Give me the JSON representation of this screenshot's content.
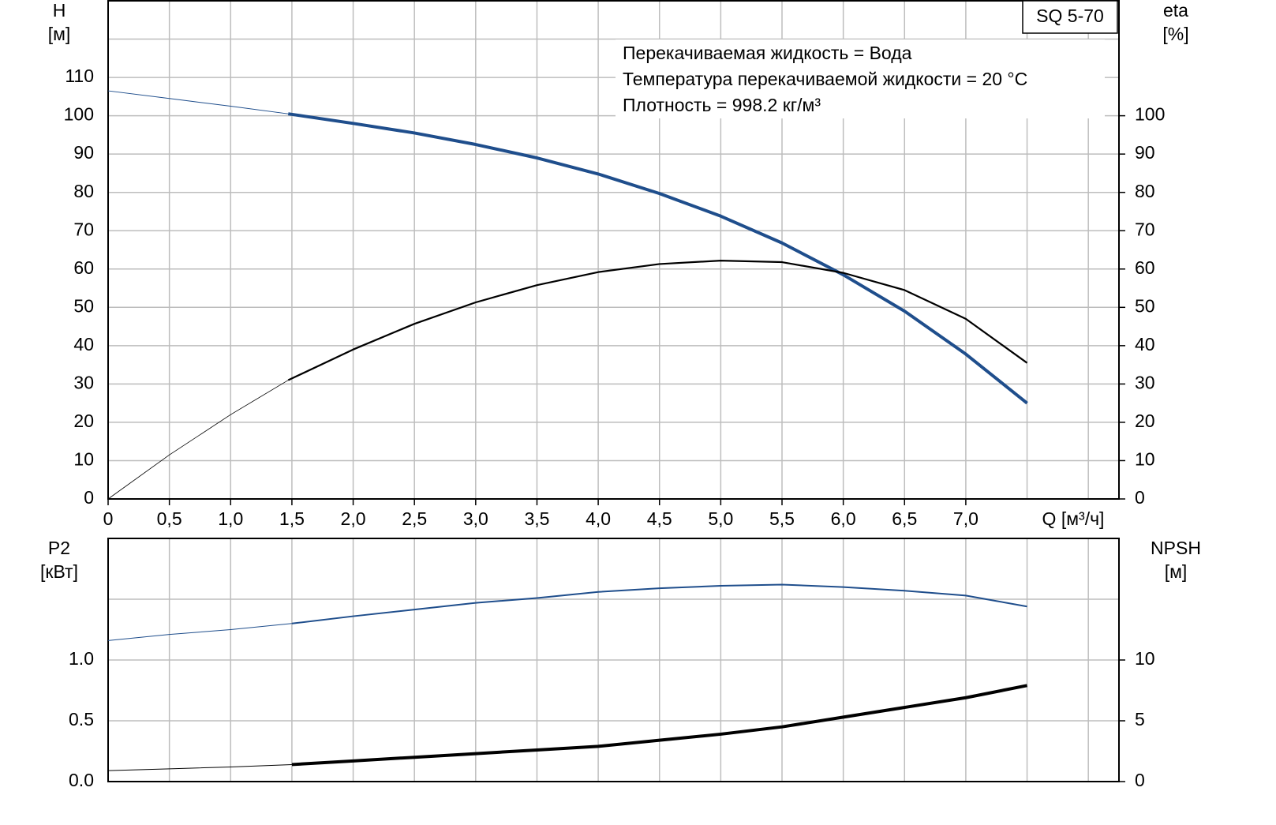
{
  "chart_data": [
    {
      "type": "line",
      "ylabel": "H",
      "ylabel_unit": "[м]",
      "y2label": "eta",
      "y2label_unit": "[%]",
      "xlabel": "Q [м³/ч]",
      "model": "SQ 5-70",
      "annotations": [
        "Перекачиваемая жидкость = Вода",
        "Температура перекачиваемой жидкости = 20 °C",
        "Плотность = 998.2 кг/м³"
      ],
      "xlim": [
        0,
        8.25
      ],
      "xticks": [
        0,
        {
          "value": 0.5,
          "label": "0,5"
        },
        {
          "value": 1.0,
          "label": "1,0"
        },
        {
          "value": 1.5,
          "label": "1,5"
        },
        {
          "value": 2.0,
          "label": "2,0"
        },
        {
          "value": 2.5,
          "label": "2,5"
        },
        {
          "value": 3.0,
          "label": "3,0"
        },
        {
          "value": 3.5,
          "label": "3,5"
        },
        {
          "value": 4.0,
          "label": "4,0"
        },
        {
          "value": 4.5,
          "label": "4,5"
        },
        {
          "value": 5.0,
          "label": "5,0"
        },
        {
          "value": 5.5,
          "label": "5,5"
        },
        {
          "value": 6.0,
          "label": "6,0"
        },
        {
          "value": 6.5,
          "label": "6,5"
        },
        {
          "value": 7.0,
          "label": "7,0"
        }
      ],
      "ylim": [
        0,
        130
      ],
      "yticks": [
        0,
        10,
        20,
        30,
        40,
        50,
        60,
        70,
        80,
        90,
        100,
        110
      ],
      "y2lim": [
        0,
        130
      ],
      "y2ticks": [
        0,
        10,
        20,
        30,
        40,
        50,
        60,
        70,
        80,
        90,
        100
      ],
      "grid": true,
      "series": [
        {
          "color": "#1f4e8c",
          "width": 1,
          "x": [
            0,
            0.5,
            1.0,
            1.47
          ],
          "values": [
            106.5,
            104.5,
            102.5,
            100.5
          ]
        },
        {
          "color": "#1f4e8c",
          "width": 4,
          "x": [
            1.47,
            2.0,
            2.5,
            3.0,
            3.5,
            4.0,
            4.5,
            5.0,
            5.5,
            6.0,
            6.5,
            7.0,
            7.5
          ],
          "values": [
            100.5,
            98,
            95.5,
            92.5,
            89,
            84.8,
            79.7,
            73.8,
            66.8,
            58.5,
            49,
            37.8,
            25
          ]
        },
        {
          "color": "#000000",
          "width": 0.8,
          "axis": "y2",
          "x": [
            0,
            0.5,
            1.0,
            1.47
          ],
          "values": [
            0,
            11.5,
            22,
            31
          ]
        },
        {
          "color": "#000000",
          "width": 2.2,
          "axis": "y2",
          "x": [
            1.47,
            2.0,
            2.5,
            3.0,
            3.5,
            4.0,
            4.5,
            5.0,
            5.5,
            6.0,
            6.5,
            7.0,
            7.5
          ],
          "values": [
            31,
            39,
            45.7,
            51.3,
            55.8,
            59.2,
            61.3,
            62.2,
            61.8,
            59,
            54.5,
            47,
            35.5
          ]
        }
      ]
    },
    {
      "type": "line",
      "ylabel": "P2",
      "ylabel_unit": "[кВт]",
      "y2label": "NPSH",
      "y2label_unit": "[м]",
      "xlim": [
        0,
        8.25
      ],
      "ylim": [
        0,
        2.0
      ],
      "yticks": [
        {
          "value": 0,
          "label": "0.0"
        },
        0.5,
        {
          "value": 1.0,
          "label": "1.0"
        }
      ],
      "y2lim": [
        0,
        20
      ],
      "y2ticks": [
        0,
        5,
        10
      ],
      "grid": true,
      "series": [
        {
          "color": "#1f4e8c",
          "width": 1,
          "x": [
            0,
            0.5,
            1.0,
            1.5
          ],
          "values": [
            1.16,
            1.21,
            1.25,
            1.3
          ]
        },
        {
          "color": "#1f4e8c",
          "width": 2,
          "x": [
            1.5,
            2.0,
            2.5,
            3.0,
            3.5,
            4.0,
            4.5,
            5.0,
            5.5,
            6.0,
            6.5,
            7.0,
            7.5
          ],
          "values": [
            1.3,
            1.36,
            1.415,
            1.47,
            1.51,
            1.56,
            1.59,
            1.61,
            1.62,
            1.6,
            1.57,
            1.53,
            1.44
          ]
        },
        {
          "color": "#000000",
          "width": 1,
          "axis": "y2",
          "x": [
            0,
            0.5,
            1.0,
            1.5
          ],
          "values": [
            0.9,
            1.05,
            1.2,
            1.4
          ]
        },
        {
          "color": "#000000",
          "width": 4,
          "axis": "y2",
          "x": [
            1.5,
            2.0,
            2.5,
            3.0,
            3.5,
            4.0,
            4.5,
            5.0,
            5.5,
            6.0,
            6.5,
            7.0,
            7.5
          ],
          "values": [
            1.4,
            1.7,
            2.0,
            2.3,
            2.6,
            2.9,
            3.4,
            3.9,
            4.5,
            5.3,
            6.1,
            6.9,
            7.9
          ]
        }
      ]
    }
  ]
}
